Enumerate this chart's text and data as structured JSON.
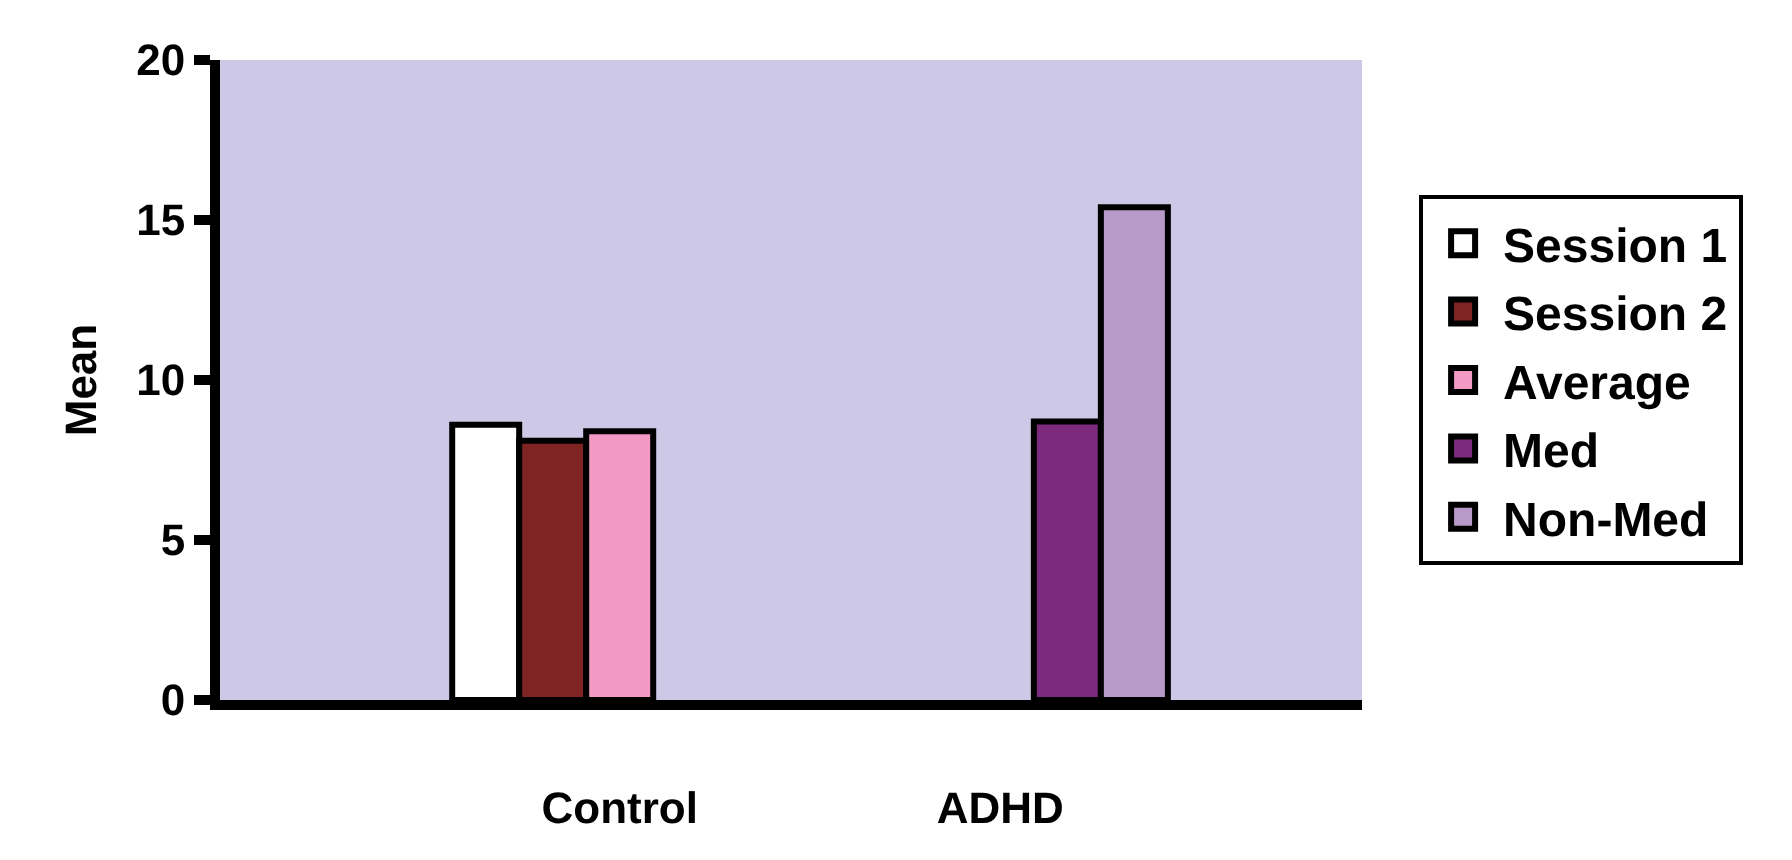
{
  "chart_data": {
    "type": "bar",
    "ylabel": "Mean",
    "categories": [
      "Control",
      "ADHD"
    ],
    "series": [
      {
        "name": "Session 1",
        "color": "#ffffff",
        "values": [
          8.6,
          null
        ]
      },
      {
        "name": "Session 2",
        "color": "#7f2323",
        "values": [
          8.1,
          null
        ]
      },
      {
        "name": "Average",
        "color": "#f29ac4",
        "values": [
          8.4,
          null
        ]
      },
      {
        "name": "Med",
        "color": "#7b2a7c",
        "values": [
          null,
          8.7
        ]
      },
      {
        "name": "Non-Med",
        "color": "#b89ac8",
        "values": [
          null,
          15.4
        ]
      }
    ],
    "ylim": [
      0,
      20
    ],
    "yticks": [
      0,
      5,
      10,
      15,
      20
    ],
    "grid": false,
    "legend": "right"
  }
}
